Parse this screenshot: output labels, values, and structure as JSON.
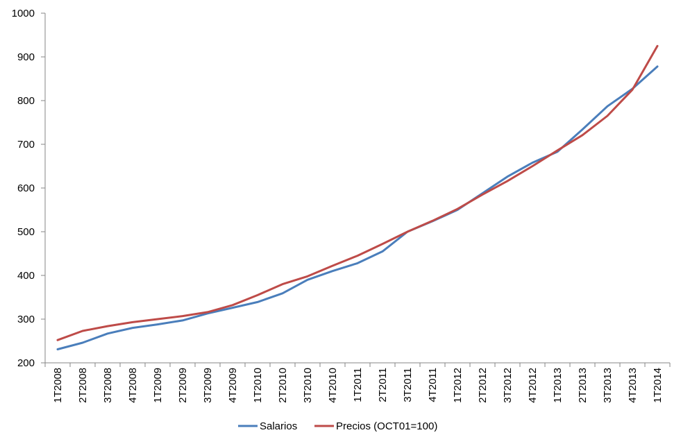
{
  "chart_data": {
    "type": "line",
    "title": "",
    "xlabel": "",
    "ylabel": "",
    "ylim": [
      200,
      1000
    ],
    "yticks": [
      200,
      300,
      400,
      500,
      600,
      700,
      800,
      900,
      1000
    ],
    "grid": false,
    "legend_position": "bottom",
    "categories": [
      "1T2008",
      "2T2008",
      "3T2008",
      "4T2008",
      "1T2009",
      "2T2009",
      "3T2009",
      "4T2009",
      "1T2010",
      "2T2010",
      "3T2010",
      "4T2010",
      "1T2011",
      "2T2011",
      "3T2011",
      "4T2011",
      "1T2012",
      "2T2012",
      "3T2012",
      "4T2012",
      "1T2013",
      "2T2013",
      "3T2013",
      "4T2013",
      "1T2014"
    ],
    "series": [
      {
        "name": "Salarios",
        "color": "#4A7EBB",
        "values": [
          231,
          246,
          267,
          280,
          288,
          297,
          313,
          326,
          339,
          359,
          390,
          410,
          428,
          455,
          500,
          524,
          550,
          588,
          626,
          658,
          683,
          734,
          787,
          827,
          878
        ]
      },
      {
        "name": "Precios (OCT01=100)",
        "color": "#BE4B48",
        "values": [
          252,
          273,
          284,
          293,
          300,
          307,
          316,
          332,
          355,
          380,
          398,
          422,
          445,
          472,
          500,
          525,
          552,
          585,
          616,
          650,
          686,
          721,
          765,
          825,
          925
        ]
      }
    ]
  }
}
